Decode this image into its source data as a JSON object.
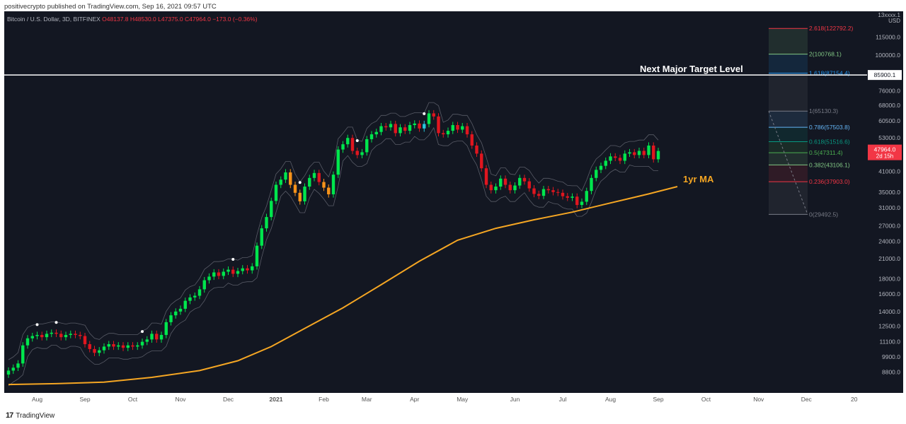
{
  "publish_info": "positivecrypto published on TradingView.com, Sep 16, 2021 09:57 UTC",
  "symbol": {
    "name": "Bitcoin / U.S. Dollar, 3D, BITFINEX",
    "open": "O48137.8",
    "high": "H48530.0",
    "low": "L47375.0",
    "close": "C47964.0",
    "change": "−173.0 (−0.36%)"
  },
  "footer": {
    "brand": "TradingView",
    "logo": "17"
  },
  "colors": {
    "background": "#131722",
    "bull": "#00e64d",
    "bear": "#e0161f",
    "orange": "#f7931a",
    "teal": "#26c6da",
    "ma_line": "#f5a623",
    "target_line": "#ffffff",
    "price_label": "#f23645"
  },
  "chart_data": {
    "type": "line",
    "title": "",
    "y_scale": "log",
    "ylim": [
      7500,
      140000
    ],
    "price_axis": {
      "unit": "USD",
      "top_label": "13xxxx.1",
      "ticks": [
        {
          "label": "115000.0",
          "value": 115000
        },
        {
          "label": "100000.0",
          "value": 100000
        },
        {
          "label": "76000.0",
          "value": 76000
        },
        {
          "label": "68000.0",
          "value": 68000
        },
        {
          "label": "60500.0",
          "value": 60500
        },
        {
          "label": "53000.0",
          "value": 53000
        },
        {
          "label": "41000.0",
          "value": 41000
        },
        {
          "label": "35000.0",
          "value": 35000
        },
        {
          "label": "31000.0",
          "value": 31000
        },
        {
          "label": "27000.0",
          "value": 27000
        },
        {
          "label": "24000.0",
          "value": 24000
        },
        {
          "label": "21000.0",
          "value": 21000
        },
        {
          "label": "18000.0",
          "value": 18000
        },
        {
          "label": "16000.0",
          "value": 16000
        },
        {
          "label": "14000.0",
          "value": 14000
        },
        {
          "label": "12500.0",
          "value": 12500
        },
        {
          "label": "11100.0",
          "value": 11100
        },
        {
          "label": "9900.0",
          "value": 9900
        },
        {
          "label": "8800.0",
          "value": 8800
        }
      ]
    },
    "time_axis": {
      "ticks": [
        {
          "label": "Aug",
          "t": 6
        },
        {
          "label": "Sep",
          "t": 16
        },
        {
          "label": "Oct",
          "t": 26
        },
        {
          "label": "Nov",
          "t": 36
        },
        {
          "label": "Dec",
          "t": 46
        },
        {
          "label": "2021",
          "t": 56
        },
        {
          "label": "Feb",
          "t": 66
        },
        {
          "label": "Mar",
          "t": 75
        },
        {
          "label": "Apr",
          "t": 85
        },
        {
          "label": "May",
          "t": 95
        },
        {
          "label": "Jun",
          "t": 106
        },
        {
          "label": "Jul",
          "t": 116
        },
        {
          "label": "Aug",
          "t": 126
        },
        {
          "label": "Sep",
          "t": 136
        },
        {
          "label": "Oct",
          "t": 146
        },
        {
          "label": "Nov",
          "t": 157
        },
        {
          "label": "Dec",
          "t": 167
        },
        {
          "label": "20",
          "t": 177
        }
      ]
    },
    "candles_close": [
      8900,
      9100,
      9400,
      10800,
      11400,
      11600,
      11700,
      11500,
      11800,
      11900,
      11800,
      11500,
      11700,
      11800,
      11700,
      11600,
      10900,
      10500,
      10200,
      10400,
      10700,
      10900,
      10700,
      10800,
      10600,
      10800,
      10700,
      10800,
      11100,
      11300,
      11800,
      11300,
      11700,
      12900,
      13600,
      14000,
      14300,
      15200,
      15600,
      15800,
      16600,
      17800,
      18300,
      18900,
      18400,
      19000,
      19300,
      18700,
      19100,
      19500,
      19200,
      19800,
      23200,
      26500,
      28900,
      32700,
      37000,
      38500,
      40700,
      37000,
      34800,
      32600,
      36500,
      39000,
      40500,
      37800,
      36200,
      34400,
      40000,
      48500,
      50500,
      53000,
      48000,
      46500,
      47500,
      52500,
      54500,
      55500,
      58000,
      57500,
      59000,
      55000,
      57500,
      56000,
      58500,
      59200,
      57000,
      59000,
      64000,
      62500,
      55000,
      54500,
      56000,
      58500,
      56500,
      58000,
      54500,
      50000,
      47000,
      42000,
      37000,
      35500,
      36500,
      38800,
      37000,
      35500,
      36800,
      39000,
      38000,
      36000,
      34500,
      34000,
      35800,
      35500,
      35000,
      34800,
      33900,
      33500,
      33800,
      31700,
      32500,
      35300,
      39000,
      41500,
      42800,
      44500,
      46000,
      45500,
      44500,
      47000,
      47500,
      46500,
      48000,
      46500,
      50000,
      45000,
      47964
    ],
    "one_year_ma": [
      {
        "t": 0,
        "value": 8000
      },
      {
        "t": 10,
        "value": 8050
      },
      {
        "t": 20,
        "value": 8150
      },
      {
        "t": 30,
        "value": 8450
      },
      {
        "t": 40,
        "value": 8900
      },
      {
        "t": 48,
        "value": 9600
      },
      {
        "t": 55,
        "value": 10700
      },
      {
        "t": 62,
        "value": 12300
      },
      {
        "t": 70,
        "value": 14400
      },
      {
        "t": 78,
        "value": 17200
      },
      {
        "t": 86,
        "value": 20600
      },
      {
        "t": 94,
        "value": 24200
      },
      {
        "t": 102,
        "value": 26500
      },
      {
        "t": 110,
        "value": 28300
      },
      {
        "t": 118,
        "value": 30000
      },
      {
        "t": 126,
        "value": 32200
      },
      {
        "t": 134,
        "value": 34500
      },
      {
        "t": 140,
        "value": 36500
      }
    ],
    "fib_levels": [
      {
        "label": "2.618(122792.2)",
        "price": 122792.2,
        "color": "#f23645"
      },
      {
        "label": "2(100768.1)",
        "price": 100768.1,
        "color": "#81c784"
      },
      {
        "label": "1.618(87154.4)",
        "price": 87154.4,
        "color": "#2196f3"
      },
      {
        "label": "1(65130.3)",
        "price": 65130.3,
        "color": "#787b86"
      },
      {
        "label": "0.786(57503.8)",
        "price": 57503.8,
        "color": "#64b5f6"
      },
      {
        "label": "0.618(51516.6)",
        "price": 51516.6,
        "color": "#089981"
      },
      {
        "label": "0.5(47311.4)",
        "price": 47311.4,
        "color": "#4caf50"
      },
      {
        "label": "0.382(43106.1)",
        "price": 43106.1,
        "color": "#81c784"
      },
      {
        "label": "0.236(37903.0)",
        "price": 37903.0,
        "color": "#f23645"
      },
      {
        "label": "0(29492.5)",
        "price": 29492.5,
        "color": "#787b86"
      }
    ],
    "target_line": {
      "label": "Next Major Target Level",
      "price": 85900.1,
      "tag": "85900.1"
    },
    "ma_label": "1yr MA",
    "last_price": {
      "value": "47964.0",
      "countdown": "2d 15h"
    }
  }
}
